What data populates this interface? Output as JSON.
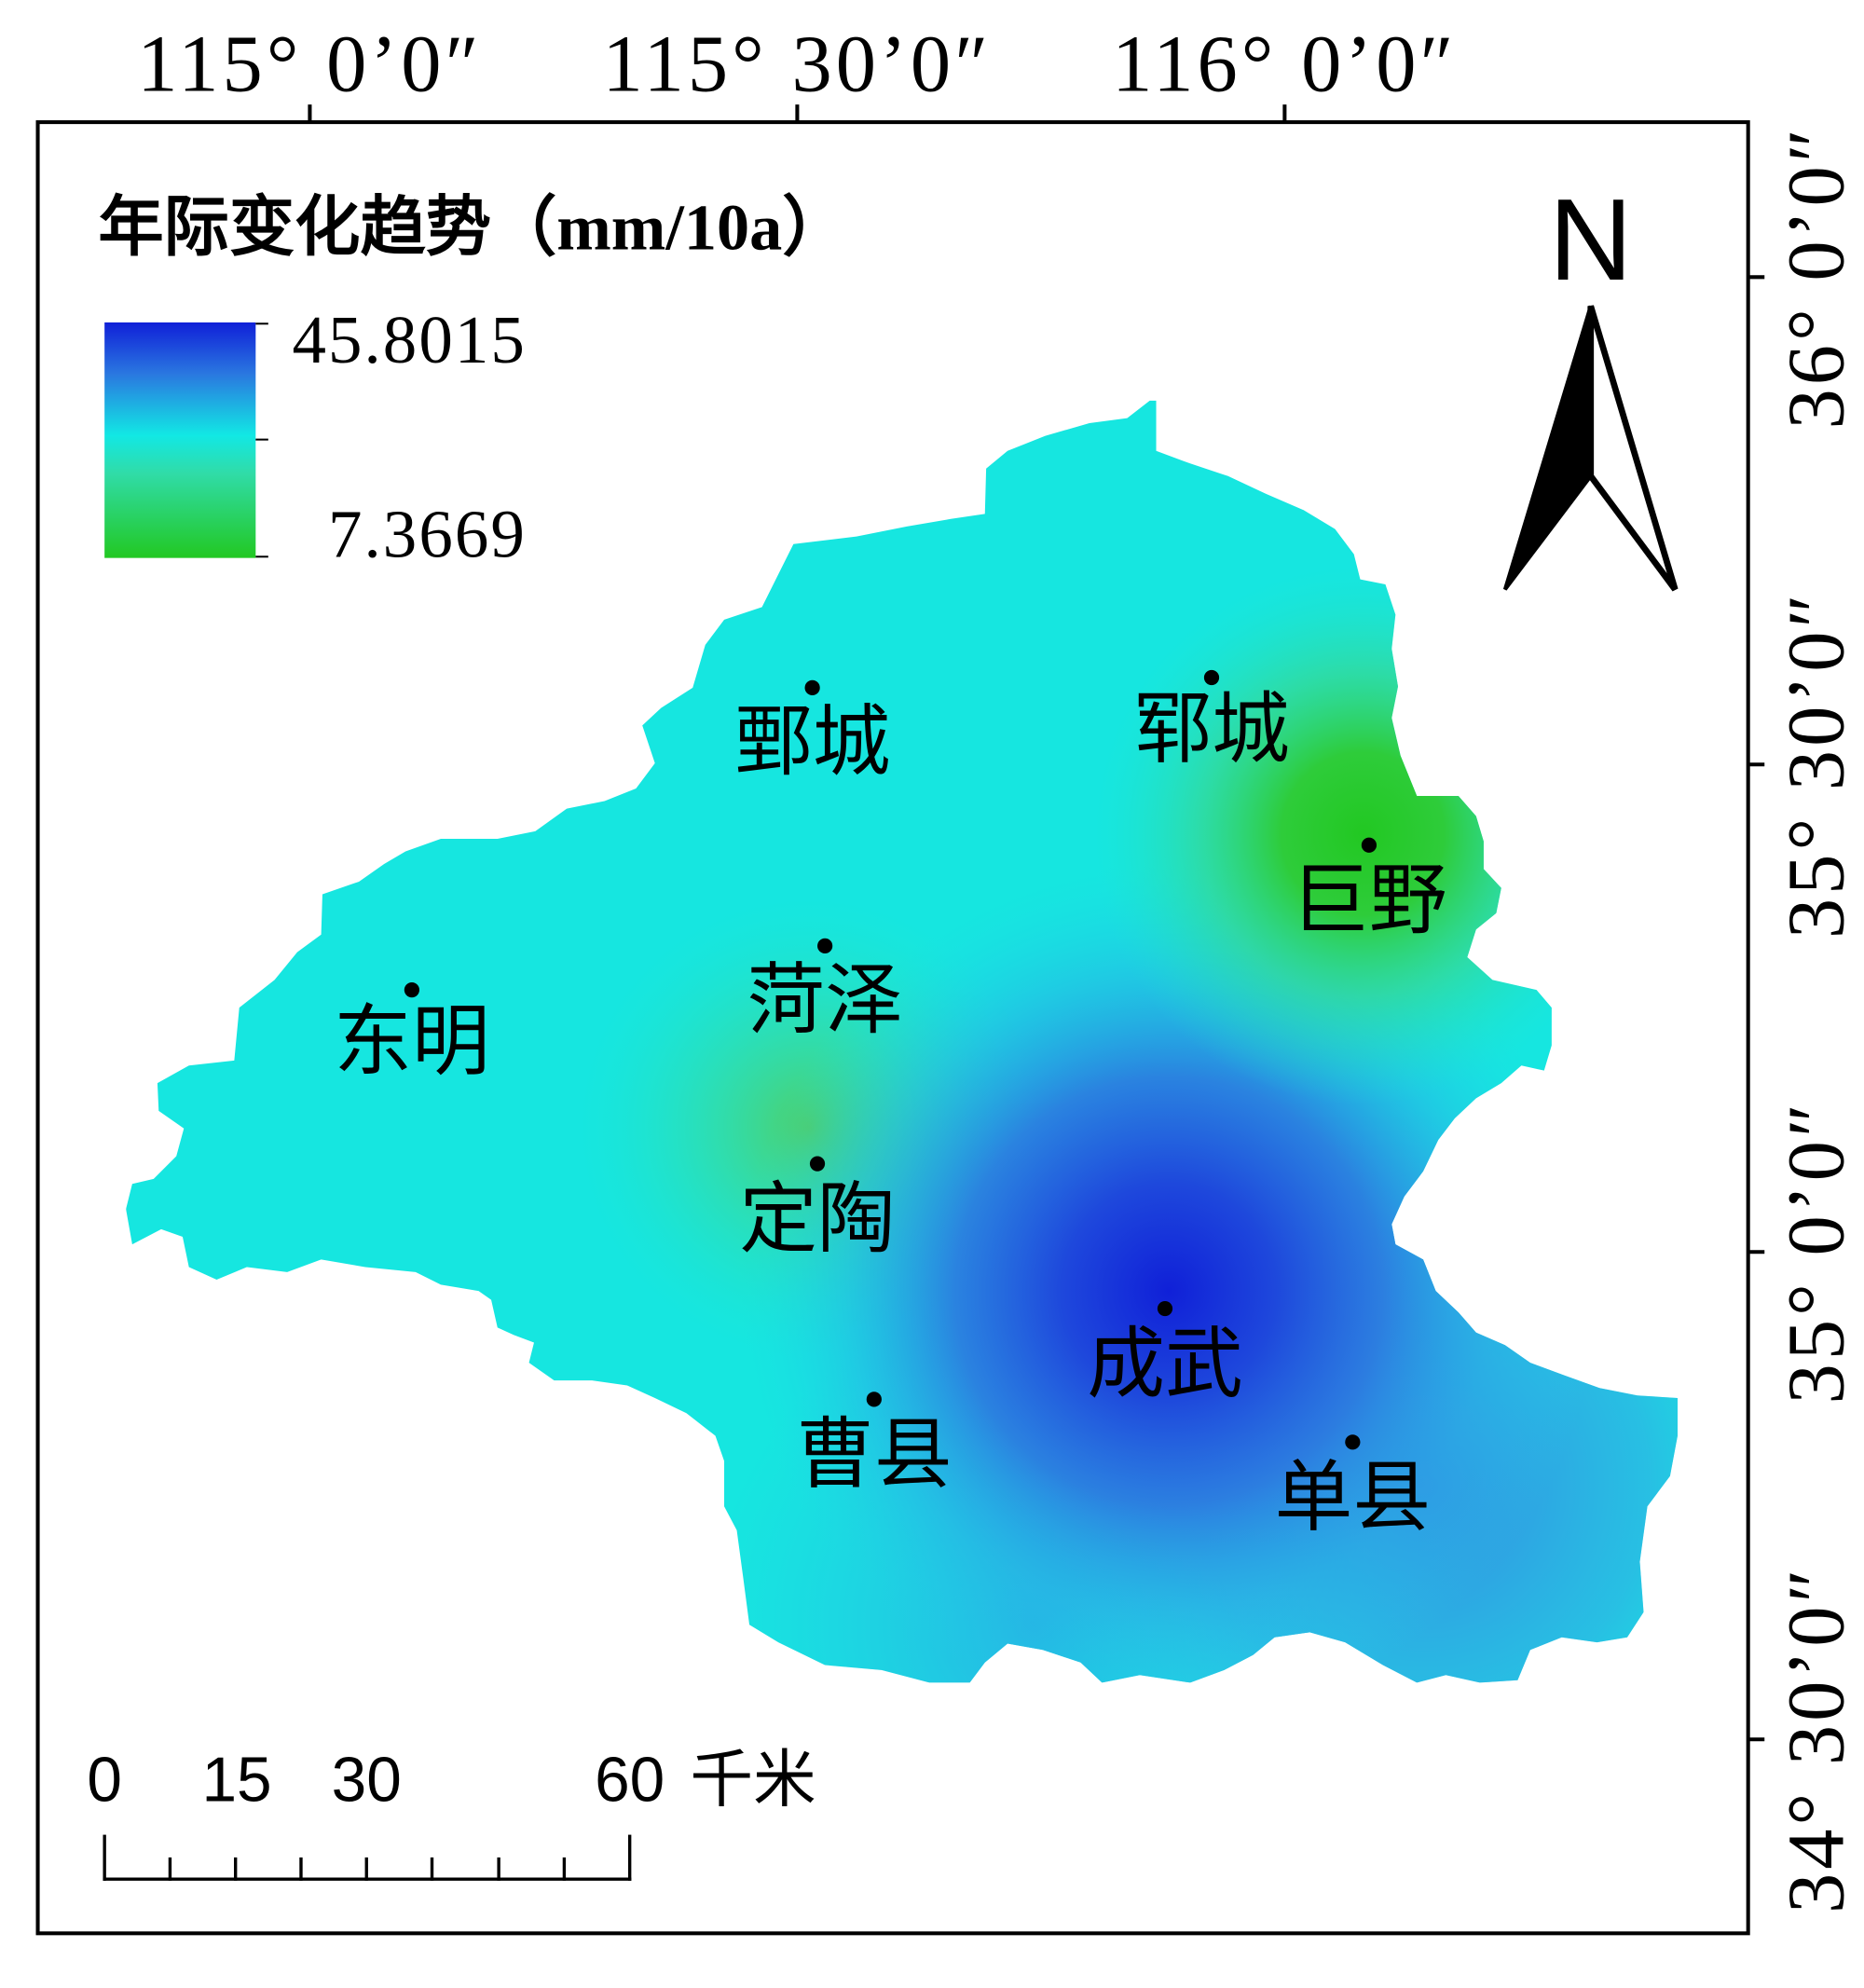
{
  "graticule": {
    "longitude_labels": [
      "115° 0’0″",
      "115° 30’0″",
      "116° 0’0″"
    ],
    "latitude_labels": [
      "36° 0’0″",
      "35° 30’0″",
      "35° 0’0″",
      "34° 30’0″"
    ]
  },
  "legend": {
    "title": "年际变化趋势（mm/10a）",
    "high_label": "45.8015",
    "low_label": "7.3669",
    "ramp_colors": {
      "high": "#1020d8",
      "middle": "#12e8e4",
      "low": "#22c822"
    }
  },
  "north_arrow": {
    "label": "N"
  },
  "scale_bar": {
    "labels": [
      "0",
      "15",
      "30",
      "60"
    ],
    "unit": "千米"
  },
  "cities": [
    {
      "name": "鄄城"
    },
    {
      "name": "郓城"
    },
    {
      "name": "巨野"
    },
    {
      "name": "菏泽"
    },
    {
      "name": "东明"
    },
    {
      "name": "定陶"
    },
    {
      "name": "成武"
    },
    {
      "name": "曹县"
    },
    {
      "name": "单县"
    }
  ],
  "surface_colors": {
    "base": "#16e6e0",
    "high_trend": "#1020d8",
    "low_trend": "#22c822"
  }
}
